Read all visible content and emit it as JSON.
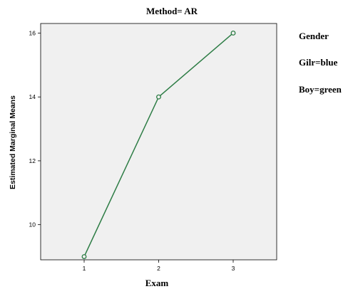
{
  "chart_data": {
    "type": "line",
    "title": "Method= AR",
    "xlabel": "Exam",
    "ylabel": "Estimated Marginal Means",
    "x": [
      "1",
      "2",
      "3"
    ],
    "series": [
      {
        "values": [
          9,
          14,
          16
        ],
        "color": "#2e7d46"
      }
    ],
    "ylim": [
      8.9,
      16.3
    ],
    "yticks": [
      10,
      12,
      14,
      16
    ],
    "grid": false,
    "plot_background": "#f0f0f0",
    "legend": {
      "placement": "right",
      "title": "Gender",
      "entries": [
        "Gilr=blue",
        "Boy=green"
      ]
    }
  }
}
